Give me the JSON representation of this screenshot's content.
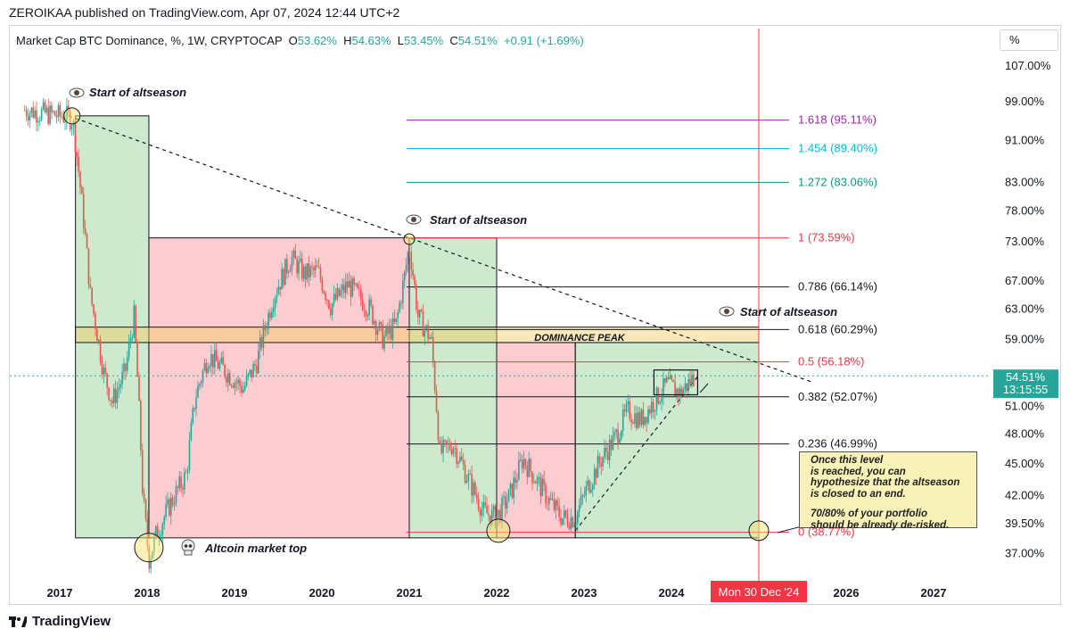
{
  "header": {
    "text": "ZEROIKAA published on TradingView.com, Apr 07, 2024 12:44 UTC+2"
  },
  "legend": {
    "title": "Market Cap BTC Dominance, %, 1W, CRYPTOCAP",
    "o_label": "O",
    "o_value": "53.62%",
    "h_label": "H",
    "h_value": "54.63%",
    "l_label": "L",
    "l_value": "53.45%",
    "c_label": "C",
    "c_value": "54.51%",
    "change": "+0.91 (+1.69%)"
  },
  "scale_button": "%",
  "price_tag": {
    "value": "54.51%",
    "countdown": "13:15:55",
    "color": "#26a69a"
  },
  "date_tag": {
    "text": "Mon 30 Dec '24",
    "color": "#f23645"
  },
  "footer": {
    "brand": "TradingView"
  },
  "note": {
    "para1": "Once this level\nis reached, you can\nhypothesize that the altseason\nis closed to an end.",
    "para2": "70/80% of your portfolio\nshould be already de-risked."
  },
  "chart_data": {
    "type": "candlestick",
    "title": "Market Cap BTC Dominance, %, 1W, CRYPTOCAP",
    "x_ticks": [
      "2017",
      "2018",
      "2019",
      "2020",
      "2021",
      "2022",
      "2023",
      "2024",
      "2026",
      "2027"
    ],
    "y_ticks": [
      "107.00%",
      "99.00%",
      "91.00%",
      "83.00%",
      "78.00%",
      "73.00%",
      "67.00%",
      "63.00%",
      "59.00%",
      "51.00%",
      "48.00%",
      "45.00%",
      "42.00%",
      "39.50%",
      "37.00%"
    ],
    "y_range": [
      35.2,
      110.5
    ],
    "y_scale": "log",
    "price_path": [
      [
        2016.6,
        97.2
      ],
      [
        2016.9,
        96.3
      ],
      [
        2017.1,
        95.8
      ],
      [
        2017.15,
        95.0
      ],
      [
        2017.25,
        80.0
      ],
      [
        2017.35,
        65.0
      ],
      [
        2017.5,
        55.0
      ],
      [
        2017.6,
        51.5
      ],
      [
        2017.75,
        55.0
      ],
      [
        2017.85,
        62.0
      ],
      [
        2017.95,
        42.0
      ],
      [
        2018.02,
        36.5
      ],
      [
        2018.1,
        38.5
      ],
      [
        2018.25,
        41.0
      ],
      [
        2018.45,
        44.0
      ],
      [
        2018.55,
        52.0
      ],
      [
        2018.7,
        57.0
      ],
      [
        2018.9,
        55.0
      ],
      [
        2019.1,
        53.0
      ],
      [
        2019.25,
        56.0
      ],
      [
        2019.45,
        65.0
      ],
      [
        2019.65,
        70.5
      ],
      [
        2019.8,
        68.0
      ],
      [
        2019.95,
        68.5
      ],
      [
        2020.1,
        63.5
      ],
      [
        2020.3,
        66.5
      ],
      [
        2020.55,
        63.0
      ],
      [
        2020.7,
        59.0
      ],
      [
        2020.85,
        61.0
      ],
      [
        2020.95,
        68.0
      ],
      [
        2021.0,
        72.5
      ],
      [
        2021.1,
        62.0
      ],
      [
        2021.25,
        59.0
      ],
      [
        2021.35,
        46.0
      ],
      [
        2021.5,
        47.0
      ],
      [
        2021.65,
        44.0
      ],
      [
        2021.85,
        40.5
      ],
      [
        2022.0,
        40.0
      ],
      [
        2022.15,
        42.0
      ],
      [
        2022.3,
        45.5
      ],
      [
        2022.45,
        43.5
      ],
      [
        2022.6,
        41.5
      ],
      [
        2022.75,
        40.0
      ],
      [
        2022.9,
        40.0
      ],
      [
        2023.05,
        43.0
      ],
      [
        2023.2,
        45.5
      ],
      [
        2023.35,
        47.5
      ],
      [
        2023.5,
        50.5
      ],
      [
        2023.65,
        49.5
      ],
      [
        2023.8,
        51.5
      ],
      [
        2023.95,
        53.5
      ],
      [
        2024.1,
        52.5
      ],
      [
        2024.27,
        54.5
      ]
    ],
    "fib_levels": [
      {
        "label": "1.618 (95.11%)",
        "value": 95.11,
        "color": "#9c27b0"
      },
      {
        "label": "1.454 (89.40%)",
        "value": 89.4,
        "color": "#00bcd4"
      },
      {
        "label": "1.272 (83.06%)",
        "value": 83.06,
        "color": "#089981"
      },
      {
        "label": "1 (73.59%)",
        "value": 73.59,
        "color": "#f23645"
      },
      {
        "label": "0.786 (66.14%)",
        "value": 66.14,
        "color": "#131722"
      },
      {
        "label": "0.618 (60.29%)",
        "value": 60.29,
        "color": "#131722"
      },
      {
        "label": "0.5 (56.18%)",
        "value": 56.18,
        "color": "#f23645"
      },
      {
        "label": "0.382 (52.07%)",
        "value": 52.07,
        "color": "#131722"
      },
      {
        "label": "0.236 (46.99%)",
        "value": 46.99,
        "color": "#131722"
      },
      {
        "label": "0 (38.77%)",
        "value": 38.77,
        "color": "#f23645"
      }
    ],
    "annotations": [
      {
        "id": "a1",
        "text": "Start of altseason",
        "x": 2017.1,
        "y": 96.0
      },
      {
        "id": "a2",
        "text": "Start of altseason",
        "x": 2021.0,
        "y": 73.6
      },
      {
        "id": "a3",
        "text": "Start of altseason",
        "x": 2024.4,
        "y": 62.0
      },
      {
        "id": "a4",
        "text": "Altcoin market top",
        "x": 2018.0,
        "y": 37.2
      },
      {
        "id": "a5",
        "text": "DOMINANCE PEAK",
        "x": 2021.85,
        "y": 59.8
      }
    ],
    "vertical_marker": {
      "label": "Mon 30 Dec '24",
      "x": 2025.0
    },
    "current_value": 54.51
  }
}
